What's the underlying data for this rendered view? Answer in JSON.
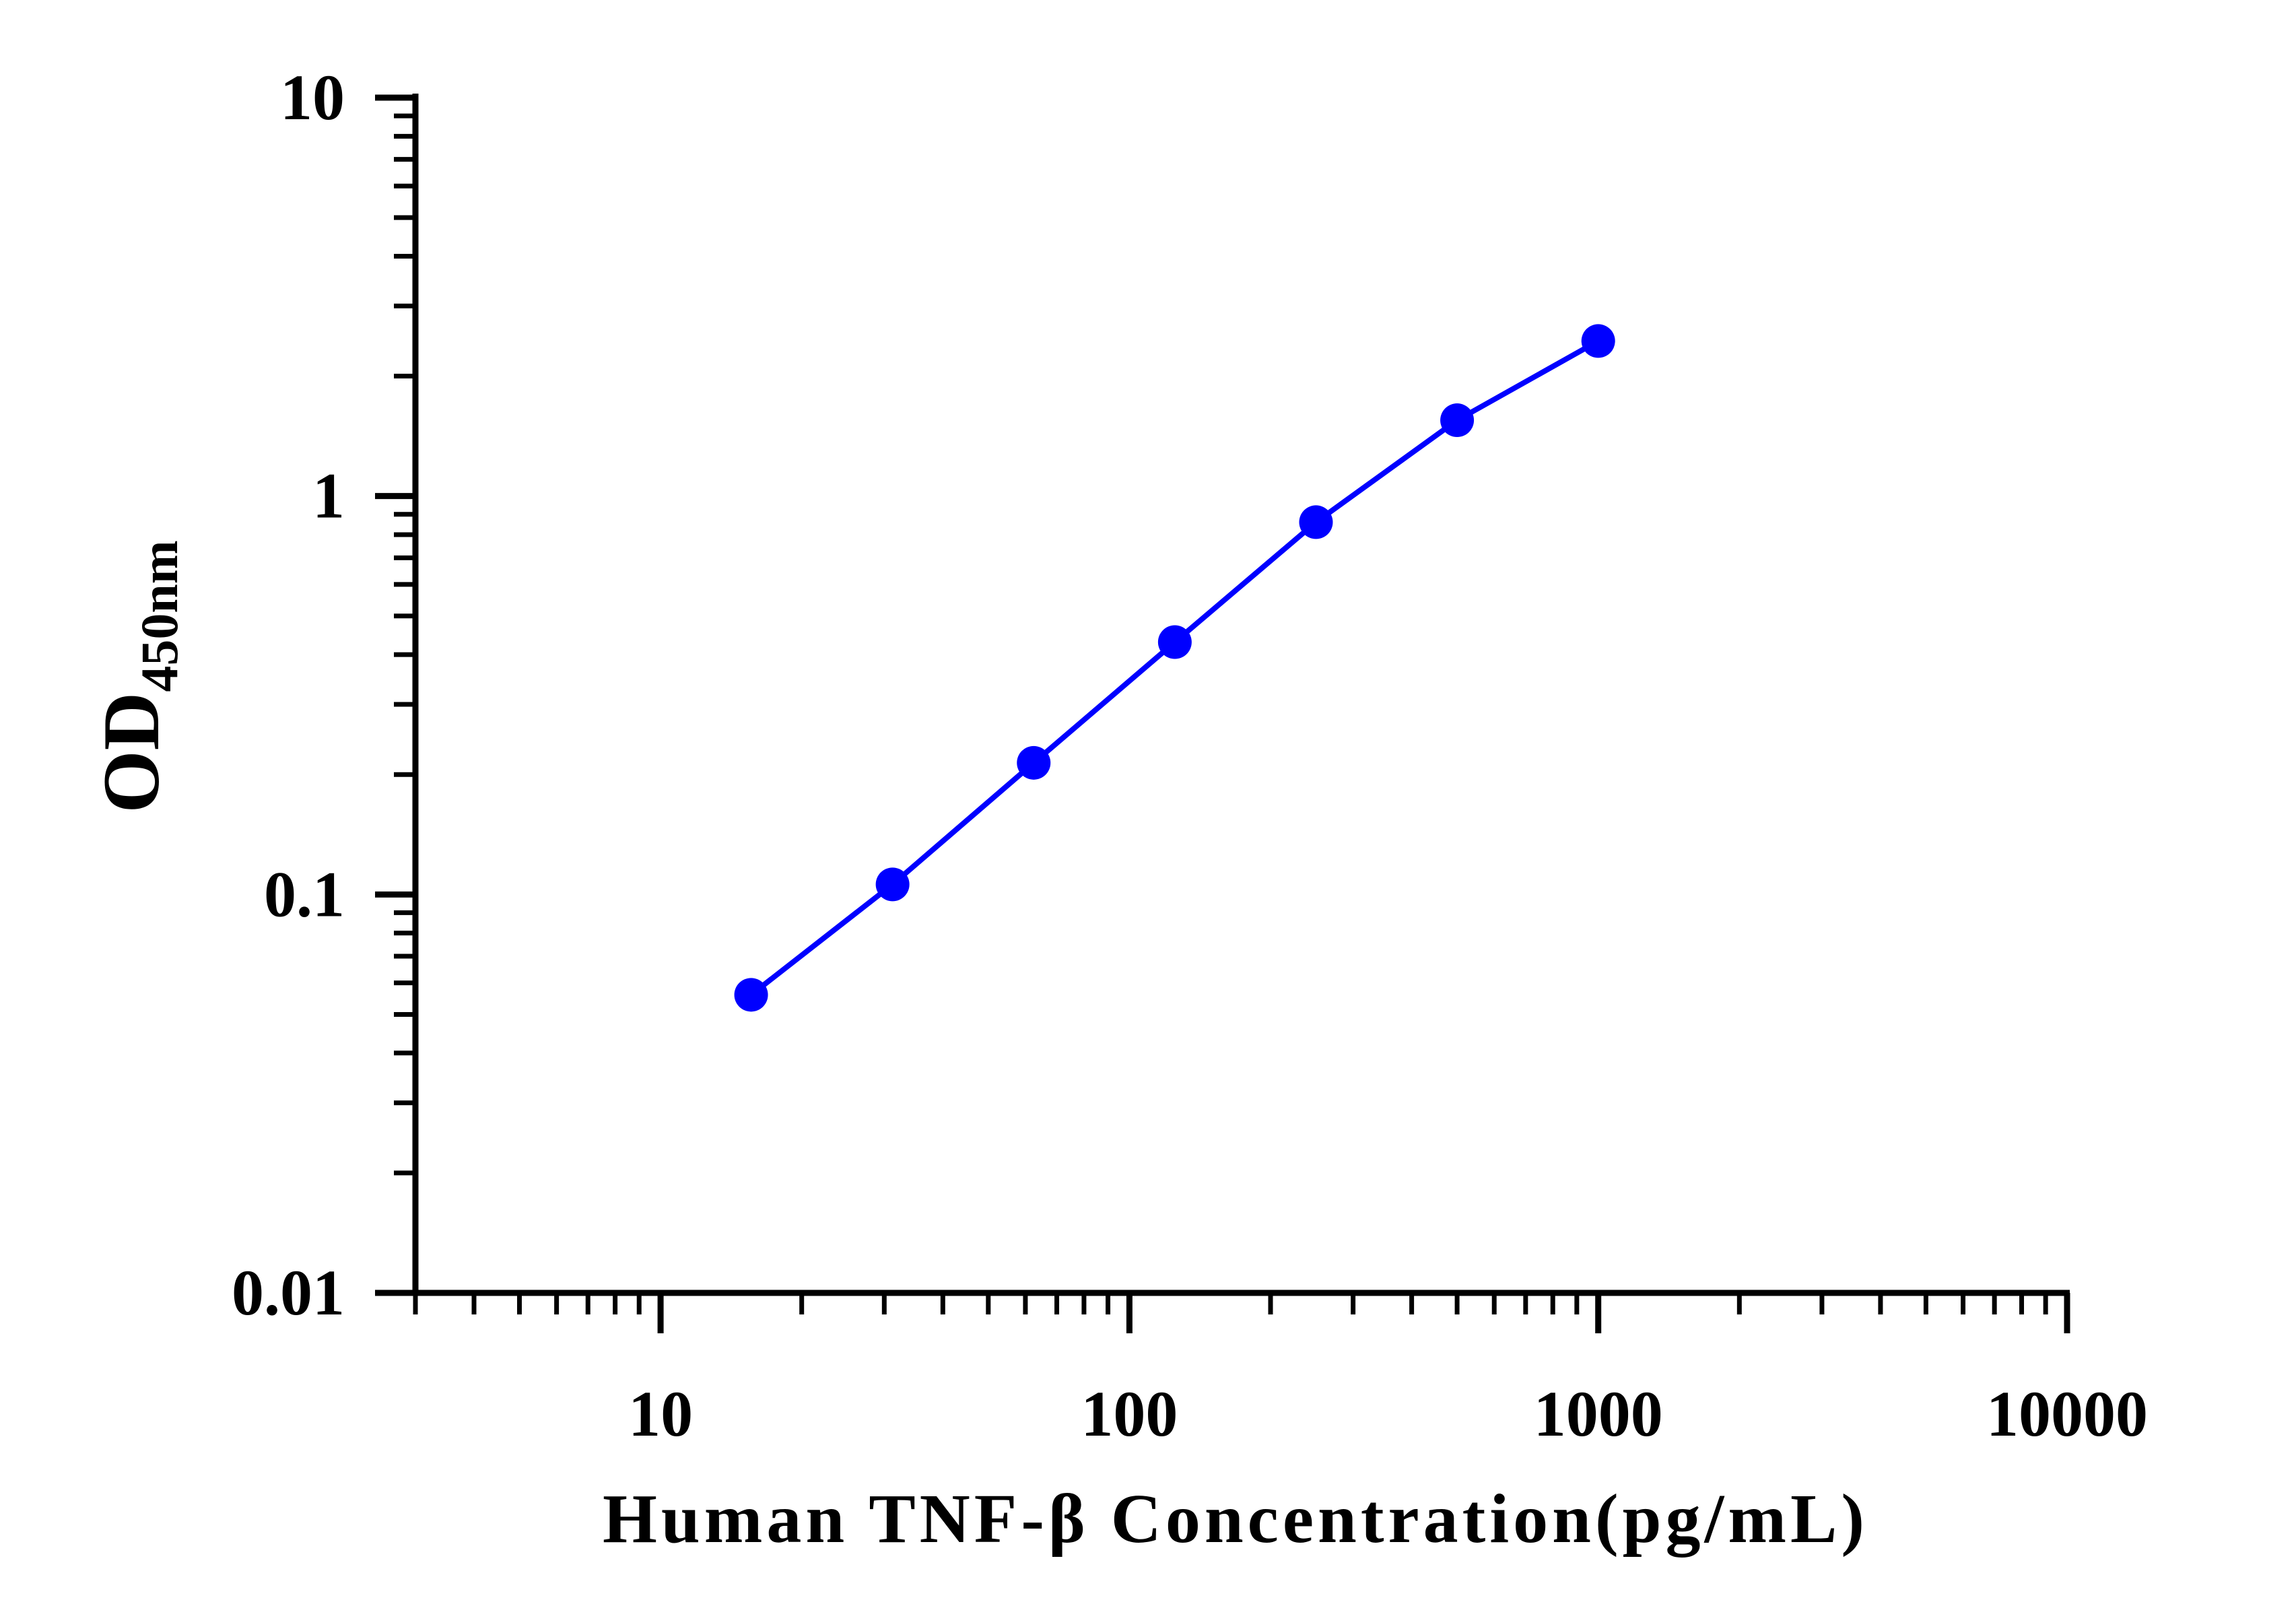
{
  "chart_data": {
    "type": "line",
    "xlabel": "Human TNF-β Concentration(pg/mL)",
    "ylabel": {
      "main": "OD",
      "subscript": "450nm"
    },
    "x_scale": "log",
    "y_scale": "log",
    "xlim": [
      3,
      10000
    ],
    "ylim": [
      0.01,
      10
    ],
    "x_tick_labels": [
      "10",
      "100",
      "1000",
      "10000"
    ],
    "y_tick_labels": [
      "0.01",
      "0.1",
      "1",
      "10"
    ],
    "grid": false,
    "legend": "none",
    "series": [
      {
        "color": "#0000ff",
        "marker": "circle",
        "points": [
          {
            "x": 15.6,
            "y": 0.056
          },
          {
            "x": 31.25,
            "y": 0.106
          },
          {
            "x": 62.5,
            "y": 0.214
          },
          {
            "x": 125,
            "y": 0.43
          },
          {
            "x": 250,
            "y": 0.86
          },
          {
            "x": 500,
            "y": 1.55
          },
          {
            "x": 1000,
            "y": 2.45
          }
        ]
      }
    ]
  }
}
